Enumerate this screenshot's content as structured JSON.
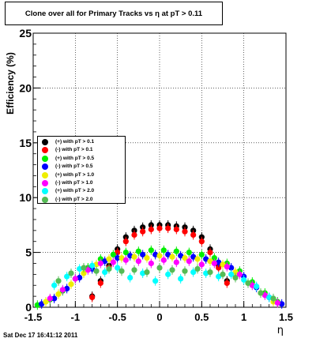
{
  "title": "Clone  over all for Primary Tracks vs    η at pT > 0.11",
  "timestamp": "Sat Dec 17 16:41:12 2011",
  "chart_data": {
    "type": "scatter",
    "xlabel": "η",
    "ylabel": "Efficiency (%)",
    "xlim": [
      -1.5,
      1.5
    ],
    "ylim": [
      0,
      25
    ],
    "xticks": [
      "-1.5",
      "-1",
      "-0.5",
      "0",
      "0.5",
      "1",
      "1.5"
    ],
    "yticks": [
      "0",
      "5",
      "10",
      "15",
      "20",
      "25"
    ],
    "grid": true,
    "legend_position": "left-middle",
    "series": [
      {
        "name": "(+) with pT > 0.1",
        "color": "#000000",
        "x": [
          -0.8,
          -0.7,
          -0.6,
          -0.5,
          -0.4,
          -0.3,
          -0.2,
          -0.1,
          0.0,
          0.1,
          0.2,
          0.3,
          0.4,
          0.5,
          0.6,
          0.7,
          0.8
        ],
        "y": [
          1.0,
          2.4,
          3.8,
          5.3,
          6.4,
          7.0,
          7.3,
          7.5,
          7.5,
          7.5,
          7.4,
          7.3,
          7.0,
          6.4,
          5.3,
          3.8,
          2.4
        ]
      },
      {
        "name": "(-) with pT > 0.1",
        "color": "#ff0000",
        "x": [
          -0.8,
          -0.7,
          -0.6,
          -0.5,
          -0.4,
          -0.3,
          -0.2,
          -0.1,
          0.0,
          0.1,
          0.2,
          0.3,
          0.4,
          0.5,
          0.6,
          0.7,
          0.8
        ],
        "y": [
          0.9,
          2.2,
          3.6,
          5.0,
          6.0,
          6.6,
          6.9,
          7.1,
          7.2,
          7.2,
          7.1,
          6.9,
          6.6,
          6.0,
          5.0,
          3.6,
          2.2
        ]
      },
      {
        "name": "(+) with pT > 0.5",
        "color": "#00ee00",
        "x": [
          -1.45,
          -1.3,
          -1.15,
          -1.0,
          -0.85,
          -0.7,
          -0.55,
          -0.4,
          -0.25,
          -0.1,
          0.05,
          0.2,
          0.35,
          0.5,
          0.65,
          0.8,
          0.95,
          1.1,
          1.25,
          1.4
        ],
        "y": [
          0.2,
          0.7,
          1.5,
          2.6,
          3.6,
          4.4,
          4.8,
          5.0,
          5.1,
          5.2,
          5.2,
          5.1,
          5.0,
          4.8,
          4.5,
          4.0,
          3.3,
          2.3,
          1.3,
          0.5
        ]
      },
      {
        "name": "(-) with pT > 0.5",
        "color": "#0000ff",
        "x": [
          -1.4,
          -1.25,
          -1.1,
          -0.95,
          -0.8,
          -0.65,
          -0.5,
          -0.35,
          -0.2,
          -0.05,
          0.1,
          0.25,
          0.4,
          0.55,
          0.7,
          0.85,
          1.0,
          1.15,
          1.3,
          1.45
        ],
        "y": [
          0.3,
          0.8,
          1.7,
          2.7,
          3.5,
          4.2,
          4.5,
          4.7,
          4.8,
          4.8,
          4.8,
          4.7,
          4.6,
          4.4,
          4.1,
          3.6,
          2.8,
          1.8,
          0.9,
          0.3
        ]
      },
      {
        "name": "(+) with pT > 1.0",
        "color": "#eeee00",
        "x": [
          -1.35,
          -1.2,
          -1.05,
          -0.9,
          -0.75,
          -0.6,
          -0.45,
          -0.3,
          -0.15,
          0.0,
          0.15,
          0.3,
          0.45,
          0.6,
          0.75,
          0.9,
          1.05,
          1.2,
          1.35
        ],
        "y": [
          0.5,
          1.2,
          2.1,
          3.1,
          3.9,
          4.4,
          4.5,
          4.6,
          4.5,
          4.7,
          4.6,
          4.5,
          4.4,
          4.2,
          3.9,
          3.2,
          2.2,
          1.3,
          0.5
        ]
      },
      {
        "name": "(-) with pT > 1.0",
        "color": "#ff00ff",
        "x": [
          -1.3,
          -1.15,
          -1.0,
          -0.85,
          -0.7,
          -0.55,
          -0.4,
          -0.25,
          -0.1,
          0.05,
          0.2,
          0.35,
          0.5,
          0.65,
          0.8,
          0.95,
          1.1,
          1.25,
          1.4
        ],
        "y": [
          0.8,
          1.6,
          2.6,
          3.4,
          4.0,
          4.1,
          4.3,
          4.2,
          4.0,
          4.3,
          4.1,
          4.2,
          3.9,
          4.0,
          3.7,
          3.0,
          2.0,
          1.1,
          0.4
        ]
      },
      {
        "name": "(+) with pT > 2.0",
        "color": "#00ffff",
        "x": [
          -1.25,
          -1.1,
          -0.95,
          -0.8,
          -0.65,
          -0.5,
          -0.35,
          -0.2,
          -0.05,
          0.1,
          0.25,
          0.4,
          0.55,
          0.7,
          0.85,
          1.0,
          1.15,
          1.3
        ],
        "y": [
          2.0,
          2.8,
          3.5,
          3.8,
          3.2,
          3.6,
          2.7,
          3.1,
          2.4,
          3.0,
          2.6,
          3.2,
          3.1,
          2.8,
          3.0,
          2.5,
          1.9,
          0.9
        ]
      },
      {
        "name": "(-) with pT > 2.0",
        "color": "#55bb55",
        "x": [
          -1.2,
          -1.05,
          -0.9,
          -0.75,
          -0.6,
          -0.45,
          -0.3,
          -0.15,
          0.0,
          0.15,
          0.3,
          0.45,
          0.6,
          0.75,
          0.9,
          1.05,
          1.2,
          1.35
        ],
        "y": [
          2.4,
          3.1,
          3.6,
          3.3,
          3.5,
          3.3,
          3.4,
          3.2,
          3.6,
          3.4,
          3.3,
          3.5,
          3.2,
          3.0,
          2.7,
          2.2,
          1.3,
          0.8
        ]
      }
    ]
  }
}
